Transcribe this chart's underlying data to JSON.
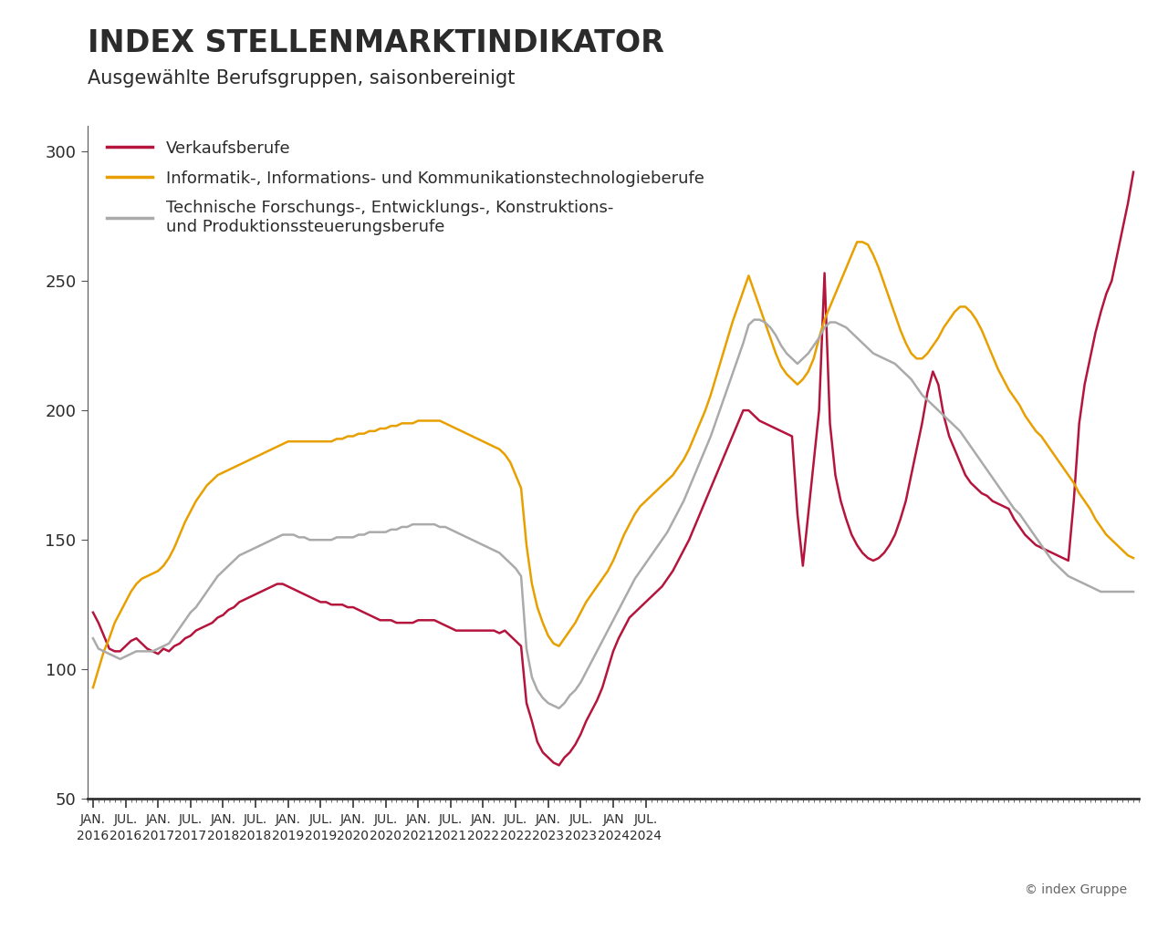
{
  "title": "INDEX STELLENMARKTINDIKATOR",
  "subtitle": "Ausgewählte Berufsgruppen, saisonbereinigt",
  "copyright": "© index Gruppe",
  "background_color": "#ffffff",
  "title_color": "#2b2b2b",
  "subtitle_color": "#2b2b2b",
  "ylim": [
    50,
    310
  ],
  "yticks": [
    50,
    100,
    150,
    200,
    250,
    300
  ],
  "line_width": 1.8,
  "series": [
    {
      "name": "Verkaufsberufe",
      "color": "#b5153c",
      "data": [
        122,
        118,
        113,
        108,
        107,
        107,
        109,
        111,
        112,
        110,
        108,
        107,
        106,
        108,
        107,
        109,
        110,
        112,
        113,
        115,
        116,
        117,
        118,
        120,
        121,
        123,
        124,
        126,
        127,
        128,
        129,
        130,
        131,
        132,
        133,
        133,
        132,
        131,
        130,
        129,
        128,
        127,
        126,
        126,
        125,
        125,
        125,
        124,
        124,
        123,
        122,
        121,
        120,
        119,
        119,
        119,
        118,
        118,
        118,
        118,
        119,
        119,
        119,
        119,
        118,
        117,
        116,
        115,
        115,
        115,
        115,
        115,
        115,
        115,
        115,
        114,
        115,
        113,
        111,
        109,
        87,
        80,
        72,
        68,
        66,
        64,
        63,
        66,
        68,
        71,
        75,
        80,
        84,
        88,
        93,
        100,
        107,
        112,
        116,
        120,
        122,
        124,
        126,
        128,
        130,
        132,
        135,
        138,
        142,
        146,
        150,
        155,
        160,
        165,
        170,
        175,
        180,
        185,
        190,
        195,
        200,
        200,
        198,
        196,
        195,
        194,
        193,
        192,
        191,
        190,
        160,
        140,
        160,
        180,
        200,
        253,
        195,
        175,
        165,
        158,
        152,
        148,
        145,
        143,
        142,
        143,
        145,
        148,
        152,
        158,
        165,
        175,
        185,
        195,
        207,
        215,
        210,
        198,
        190,
        185,
        180,
        175,
        172,
        170,
        168,
        167,
        165,
        164,
        163,
        162,
        158,
        155,
        152,
        150,
        148,
        147,
        146,
        145,
        144,
        143,
        142,
        165,
        195,
        210,
        220,
        230,
        238,
        245,
        250,
        260,
        270,
        280,
        292
      ]
    },
    {
      "name": "Informatik-, Informations- und Kommunikationstechnologieberufe",
      "color": "#e8a000",
      "data": [
        93,
        100,
        107,
        112,
        118,
        122,
        126,
        130,
        133,
        135,
        136,
        137,
        138,
        140,
        143,
        147,
        152,
        157,
        161,
        165,
        168,
        171,
        173,
        175,
        176,
        177,
        178,
        179,
        180,
        181,
        182,
        183,
        184,
        185,
        186,
        187,
        188,
        188,
        188,
        188,
        188,
        188,
        188,
        188,
        188,
        189,
        189,
        190,
        190,
        191,
        191,
        192,
        192,
        193,
        193,
        194,
        194,
        195,
        195,
        195,
        196,
        196,
        196,
        196,
        196,
        195,
        194,
        193,
        192,
        191,
        190,
        189,
        188,
        187,
        186,
        185,
        183,
        180,
        175,
        170,
        148,
        133,
        124,
        118,
        113,
        110,
        109,
        112,
        115,
        118,
        122,
        126,
        129,
        132,
        135,
        138,
        142,
        147,
        152,
        156,
        160,
        163,
        165,
        167,
        169,
        171,
        173,
        175,
        178,
        181,
        185,
        190,
        195,
        200,
        206,
        213,
        220,
        227,
        234,
        240,
        246,
        252,
        246,
        240,
        234,
        228,
        222,
        217,
        214,
        212,
        210,
        212,
        215,
        220,
        228,
        235,
        240,
        245,
        250,
        255,
        260,
        265,
        265,
        264,
        260,
        255,
        249,
        243,
        237,
        231,
        226,
        222,
        220,
        220,
        222,
        225,
        228,
        232,
        235,
        238,
        240,
        240,
        238,
        235,
        231,
        226,
        221,
        216,
        212,
        208,
        205,
        202,
        198,
        195,
        192,
        190,
        187,
        184,
        181,
        178,
        175,
        172,
        168,
        165,
        162,
        158,
        155,
        152,
        150,
        148,
        146,
        144,
        143
      ]
    },
    {
      "name": "Technische Forschungs-, Entwicklungs-, Konstruktions-\nund Produktionssteuerungsberufe",
      "color": "#aaaaaa",
      "data": [
        112,
        108,
        107,
        106,
        105,
        104,
        105,
        106,
        107,
        107,
        107,
        107,
        108,
        109,
        110,
        113,
        116,
        119,
        122,
        124,
        127,
        130,
        133,
        136,
        138,
        140,
        142,
        144,
        145,
        146,
        147,
        148,
        149,
        150,
        151,
        152,
        152,
        152,
        151,
        151,
        150,
        150,
        150,
        150,
        150,
        151,
        151,
        151,
        151,
        152,
        152,
        153,
        153,
        153,
        153,
        154,
        154,
        155,
        155,
        156,
        156,
        156,
        156,
        156,
        155,
        155,
        154,
        153,
        152,
        151,
        150,
        149,
        148,
        147,
        146,
        145,
        143,
        141,
        139,
        136,
        108,
        97,
        92,
        89,
        87,
        86,
        85,
        87,
        90,
        92,
        95,
        99,
        103,
        107,
        111,
        115,
        119,
        123,
        127,
        131,
        135,
        138,
        141,
        144,
        147,
        150,
        153,
        157,
        161,
        165,
        170,
        175,
        180,
        185,
        190,
        196,
        202,
        208,
        214,
        220,
        226,
        233,
        235,
        235,
        234,
        232,
        229,
        225,
        222,
        220,
        218,
        220,
        222,
        225,
        228,
        232,
        234,
        234,
        233,
        232,
        230,
        228,
        226,
        224,
        222,
        221,
        220,
        219,
        218,
        216,
        214,
        212,
        209,
        206,
        204,
        202,
        200,
        198,
        196,
        194,
        192,
        189,
        186,
        183,
        180,
        177,
        174,
        171,
        168,
        165,
        162,
        160,
        157,
        154,
        151,
        148,
        145,
        142,
        140,
        138,
        136,
        135,
        134,
        133,
        132,
        131,
        130,
        130,
        130,
        130,
        130,
        130,
        130
      ]
    }
  ],
  "xtick_labels": [
    "JAN.\n2016",
    "JUL.\n2016",
    "JAN.\n2017",
    "JUL.\n2017",
    "JAN.\n2018",
    "JUL.\n2018",
    "JAN.\n2019",
    "JUL.\n2019",
    "JAN.\n2020",
    "JUL.\n2020",
    "JAN.\n2021",
    "JUL.\n2021",
    "JAN.\n2022",
    "JUL.\n2022",
    "JAN.\n2023",
    "JUL.\n2023",
    "JAN\n2024",
    "JUL.\n2024"
  ],
  "legend_entries": [
    {
      "label": "Verkaufsberufe",
      "color": "#b5153c"
    },
    {
      "label": "Informatik-, Informations- und Kommunikationstechnologieberufe",
      "color": "#e8a000"
    },
    {
      "label": "Technische Forschungs-, Entwicklungs-, Konstruktions-\nund Produktionssteuerungsberufe",
      "color": "#aaaaaa"
    }
  ]
}
